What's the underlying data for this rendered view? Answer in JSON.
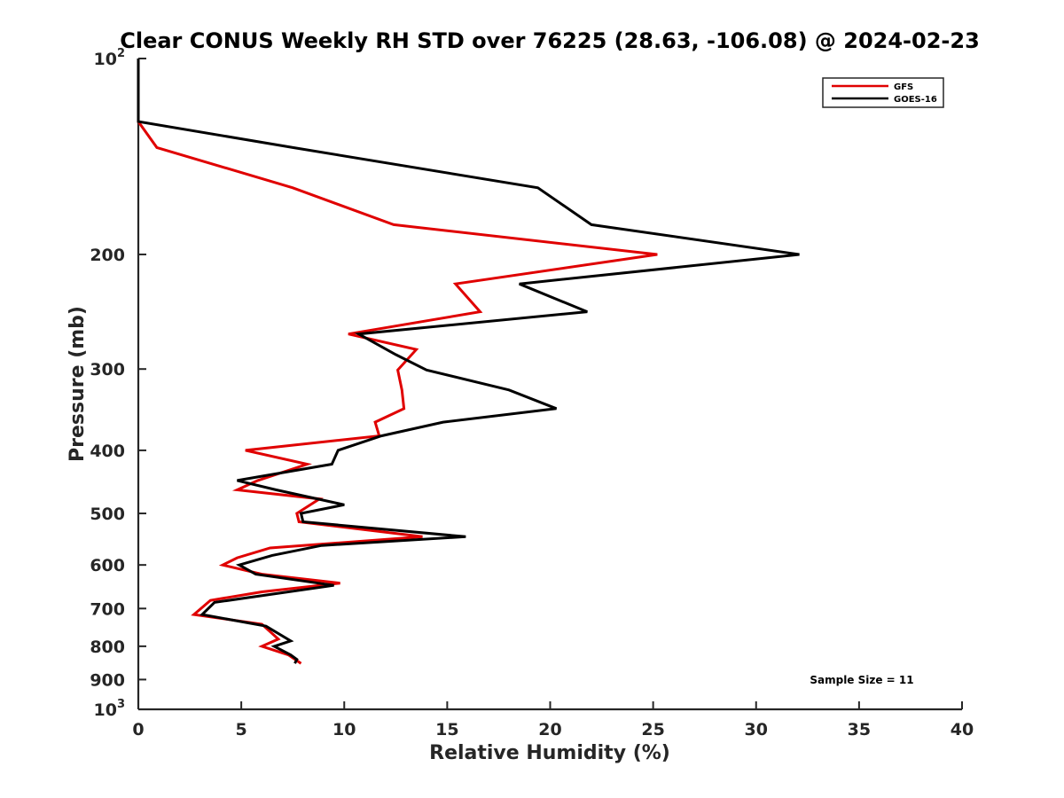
{
  "chart_data": {
    "type": "line",
    "title": "Clear CONUS Weekly RH STD over 76225 (28.63, -106.08) @ 2024-02-23",
    "xlabel": "Relative Humidity (%)",
    "ylabel": "Pressure (mb)",
    "xlim": [
      0,
      40
    ],
    "ylim": [
      100,
      1000
    ],
    "y_scale": "log",
    "y_reversed": true,
    "grid": false,
    "x_ticks": [
      "0",
      "5",
      "10",
      "15",
      "20",
      "25",
      "30",
      "35",
      "40"
    ],
    "y_ticks": [
      {
        "value": 100,
        "base": "10",
        "exp": "2"
      },
      {
        "value": 200,
        "label": "200"
      },
      {
        "value": 300,
        "label": "300"
      },
      {
        "value": 400,
        "label": "400"
      },
      {
        "value": 500,
        "label": "500"
      },
      {
        "value": 600,
        "label": "600"
      },
      {
        "value": 700,
        "label": "700"
      },
      {
        "value": 800,
        "label": "800"
      },
      {
        "value": 900,
        "label": "900"
      },
      {
        "value": 1000,
        "base": "10",
        "exp": "3"
      }
    ],
    "legend_position": "top-right",
    "series": [
      {
        "name": "GFS",
        "color": "#e00000",
        "points": [
          {
            "x": 0.0,
            "p": 100
          },
          {
            "x": 0.0,
            "p": 125
          },
          {
            "x": 0.9,
            "p": 137
          },
          {
            "x": 7.5,
            "p": 158
          },
          {
            "x": 12.4,
            "p": 180
          },
          {
            "x": 25.2,
            "p": 200
          },
          {
            "x": 15.4,
            "p": 222
          },
          {
            "x": 16.6,
            "p": 245
          },
          {
            "x": 10.2,
            "p": 265
          },
          {
            "x": 13.5,
            "p": 280
          },
          {
            "x": 12.6,
            "p": 301
          },
          {
            "x": 12.8,
            "p": 323
          },
          {
            "x": 12.9,
            "p": 345
          },
          {
            "x": 11.5,
            "p": 362
          },
          {
            "x": 11.7,
            "p": 380
          },
          {
            "x": 5.2,
            "p": 400
          },
          {
            "x": 8.2,
            "p": 420
          },
          {
            "x": 5.8,
            "p": 445
          },
          {
            "x": 4.8,
            "p": 460
          },
          {
            "x": 8.8,
            "p": 475
          },
          {
            "x": 7.7,
            "p": 500
          },
          {
            "x": 7.8,
            "p": 515
          },
          {
            "x": 13.8,
            "p": 543
          },
          {
            "x": 6.4,
            "p": 565
          },
          {
            "x": 4.8,
            "p": 585
          },
          {
            "x": 4.1,
            "p": 600
          },
          {
            "x": 6.0,
            "p": 620
          },
          {
            "x": 9.8,
            "p": 640
          },
          {
            "x": 6.0,
            "p": 660
          },
          {
            "x": 3.5,
            "p": 680
          },
          {
            "x": 2.7,
            "p": 715
          },
          {
            "x": 6.0,
            "p": 740
          },
          {
            "x": 6.8,
            "p": 780
          },
          {
            "x": 6.0,
            "p": 800
          },
          {
            "x": 7.3,
            "p": 825
          },
          {
            "x": 7.9,
            "p": 850
          }
        ]
      },
      {
        "name": "GOES-16",
        "color": "#000000",
        "points": [
          {
            "x": 0.0,
            "p": 100
          },
          {
            "x": 0.0,
            "p": 125
          },
          {
            "x": 7.5,
            "p": 137
          },
          {
            "x": 19.4,
            "p": 158
          },
          {
            "x": 22.0,
            "p": 180
          },
          {
            "x": 32.1,
            "p": 200
          },
          {
            "x": 18.5,
            "p": 222
          },
          {
            "x": 21.8,
            "p": 245
          },
          {
            "x": 10.7,
            "p": 265
          },
          {
            "x": 12.5,
            "p": 285
          },
          {
            "x": 14.0,
            "p": 301
          },
          {
            "x": 18.0,
            "p": 323
          },
          {
            "x": 20.3,
            "p": 345
          },
          {
            "x": 14.8,
            "p": 362
          },
          {
            "x": 11.8,
            "p": 380
          },
          {
            "x": 9.7,
            "p": 400
          },
          {
            "x": 9.4,
            "p": 420
          },
          {
            "x": 4.8,
            "p": 445
          },
          {
            "x": 6.7,
            "p": 460
          },
          {
            "x": 10.0,
            "p": 485
          },
          {
            "x": 7.9,
            "p": 500
          },
          {
            "x": 8.0,
            "p": 515
          },
          {
            "x": 15.9,
            "p": 543
          },
          {
            "x": 8.9,
            "p": 560
          },
          {
            "x": 6.5,
            "p": 580
          },
          {
            "x": 4.9,
            "p": 600
          },
          {
            "x": 5.7,
            "p": 620
          },
          {
            "x": 9.5,
            "p": 645
          },
          {
            "x": 3.7,
            "p": 685
          },
          {
            "x": 3.1,
            "p": 715
          },
          {
            "x": 6.2,
            "p": 745
          },
          {
            "x": 7.4,
            "p": 785
          },
          {
            "x": 6.6,
            "p": 800
          },
          {
            "x": 7.4,
            "p": 825
          },
          {
            "x": 7.7,
            "p": 838
          },
          {
            "x": 7.6,
            "p": 850
          }
        ]
      }
    ],
    "annotation": "Sample Size = 11"
  }
}
